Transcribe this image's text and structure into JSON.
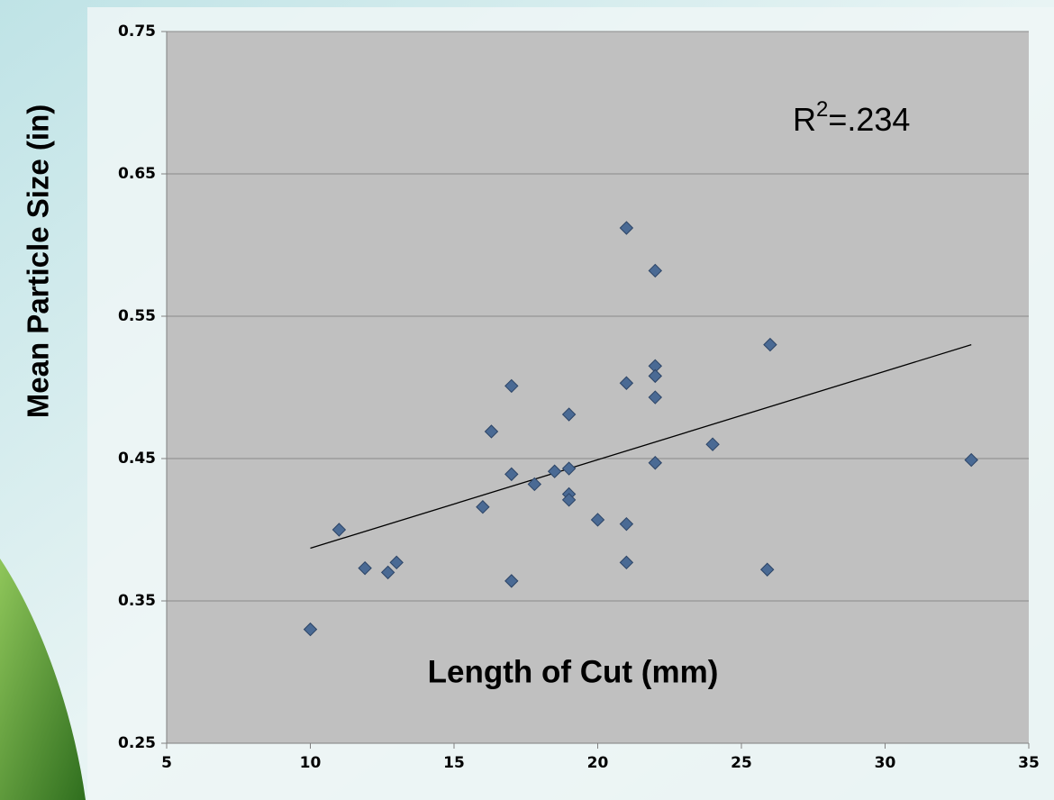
{
  "chart_data": {
    "type": "scatter",
    "x_label": "Length of Cut (mm)",
    "y_label": "Mean Particle Size (in)",
    "annotation": {
      "base": "R",
      "sup": "2",
      "rest": "=.234"
    },
    "x": [
      10,
      11,
      11.9,
      12.7,
      13,
      16,
      16.3,
      17,
      17,
      17,
      17.8,
      18.5,
      19,
      19,
      19,
      19,
      20,
      21,
      21,
      21,
      21,
      22,
      22,
      22,
      22,
      22,
      24,
      26,
      25.9,
      33
    ],
    "series": [
      {
        "color": "#4a6a94",
        "values": [
          0.33,
          0.4,
          0.373,
          0.37,
          0.377,
          0.416,
          0.469,
          0.501,
          0.439,
          0.364,
          0.432,
          0.441,
          0.443,
          0.481,
          0.425,
          0.421,
          0.407,
          0.612,
          0.503,
          0.404,
          0.377,
          0.582,
          0.515,
          0.508,
          0.493,
          0.447,
          0.46,
          0.53,
          0.372,
          0.449
        ]
      }
    ],
    "trendline": {
      "x": [
        10,
        33
      ],
      "y": [
        0.387,
        0.53
      ],
      "color": "#000000"
    },
    "xlim": [
      5,
      35
    ],
    "xticks": [
      5,
      10,
      15,
      20,
      25,
      30,
      35
    ],
    "ylim": [
      0.25,
      0.75
    ],
    "yticks": [
      0.25,
      0.35,
      0.45,
      0.55,
      0.65,
      0.75
    ],
    "grid": true
  }
}
